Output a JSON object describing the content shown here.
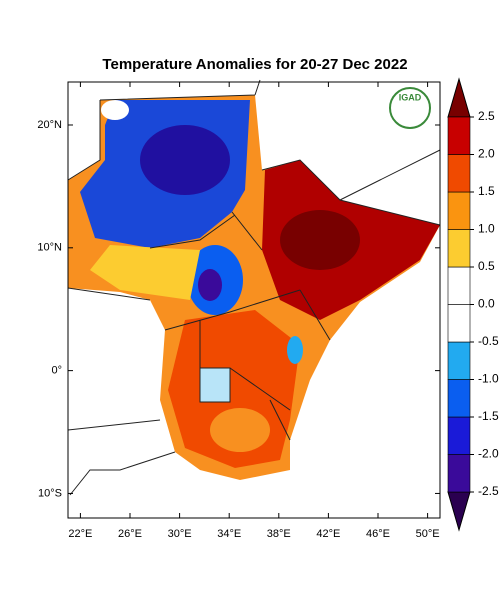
{
  "title": "Temperature Anomalies for 20-27 Dec 2022",
  "logo_text": "IGAD",
  "map": {
    "xlim": [
      21,
      51
    ],
    "ylim": [
      -12,
      23.5
    ],
    "xticks": [
      {
        "value": 22,
        "label": "22°E"
      },
      {
        "value": 26,
        "label": "26°E"
      },
      {
        "value": 30,
        "label": "30°E"
      },
      {
        "value": 34,
        "label": "34°E"
      },
      {
        "value": 38,
        "label": "38°E"
      },
      {
        "value": 42,
        "label": "42°E"
      },
      {
        "value": 46,
        "label": "46°E"
      },
      {
        "value": 50,
        "label": "50°E"
      }
    ],
    "yticks": [
      {
        "value": 20,
        "label": "20°N"
      },
      {
        "value": 10,
        "label": "10°N"
      },
      {
        "value": 0,
        "label": "0°"
      },
      {
        "value": -10,
        "label": "10°S"
      }
    ]
  },
  "colorbar": {
    "levels": [
      -2.5,
      {
        "value": -2.0,
        "label": "-2.0"
      },
      -1.5,
      {
        "value": -1.0,
        "label": "-1.0"
      },
      -0.5,
      {
        "value": 0.0,
        "label": "0.0"
      },
      0.5,
      {
        "value": 1.0,
        "label": "1.0"
      },
      1.5,
      {
        "value": 2.0,
        "label": "2.0"
      },
      2.5
    ],
    "colors": [
      "#2a0050",
      "#3a0a9a",
      "#1a1ad8",
      "#0a5ef0",
      "#22aaf0",
      "#ffffff",
      "#ffffff",
      "#fccc30",
      "#fa9410",
      "#f04a00",
      "#c80000",
      "#780000"
    ]
  }
}
